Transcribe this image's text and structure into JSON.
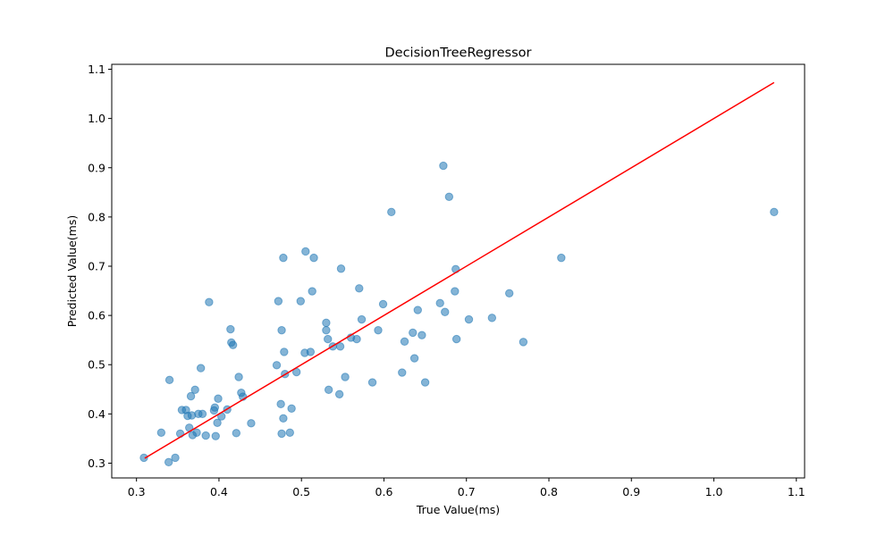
{
  "chart_data": {
    "type": "scatter",
    "title": "DecisionTreeRegressor",
    "xlabel": "True Value(ms)",
    "ylabel": "Predicted Value(ms)",
    "xlim": [
      0.27,
      1.11
    ],
    "ylim": [
      0.27,
      1.11
    ],
    "xticks": [
      "0.3",
      "0.4",
      "0.5",
      "0.6",
      "0.7",
      "0.8",
      "0.9",
      "1.0",
      "1.1"
    ],
    "yticks": [
      "0.3",
      "0.4",
      "0.5",
      "0.6",
      "0.7",
      "0.8",
      "0.9",
      "1.0",
      "1.1"
    ],
    "grid": false,
    "point_color": "#1f77b4",
    "point_alpha": 0.55,
    "line_color": "#ff0000",
    "reference_line": {
      "x": [
        0.31,
        1.073
      ],
      "y": [
        0.31,
        1.073
      ]
    },
    "points": [
      [
        0.309,
        0.311
      ],
      [
        0.33,
        0.362
      ],
      [
        0.339,
        0.302
      ],
      [
        0.34,
        0.469
      ],
      [
        0.347,
        0.311
      ],
      [
        0.353,
        0.36
      ],
      [
        0.355,
        0.408
      ],
      [
        0.36,
        0.408
      ],
      [
        0.362,
        0.396
      ],
      [
        0.364,
        0.372
      ],
      [
        0.366,
        0.436
      ],
      [
        0.367,
        0.397
      ],
      [
        0.368,
        0.357
      ],
      [
        0.371,
        0.449
      ],
      [
        0.373,
        0.362
      ],
      [
        0.375,
        0.4
      ],
      [
        0.378,
        0.493
      ],
      [
        0.38,
        0.4
      ],
      [
        0.384,
        0.356
      ],
      [
        0.388,
        0.627
      ],
      [
        0.394,
        0.407
      ],
      [
        0.395,
        0.413
      ],
      [
        0.396,
        0.355
      ],
      [
        0.398,
        0.382
      ],
      [
        0.399,
        0.431
      ],
      [
        0.403,
        0.395
      ],
      [
        0.41,
        0.409
      ],
      [
        0.414,
        0.572
      ],
      [
        0.415,
        0.545
      ],
      [
        0.417,
        0.54
      ],
      [
        0.421,
        0.361
      ],
      [
        0.424,
        0.475
      ],
      [
        0.427,
        0.443
      ],
      [
        0.429,
        0.435
      ],
      [
        0.439,
        0.381
      ],
      [
        0.47,
        0.499
      ],
      [
        0.472,
        0.629
      ],
      [
        0.475,
        0.42
      ],
      [
        0.476,
        0.57
      ],
      [
        0.476,
        0.36
      ],
      [
        0.478,
        0.717
      ],
      [
        0.478,
        0.391
      ],
      [
        0.479,
        0.526
      ],
      [
        0.48,
        0.481
      ],
      [
        0.486,
        0.362
      ],
      [
        0.488,
        0.411
      ],
      [
        0.494,
        0.485
      ],
      [
        0.499,
        0.629
      ],
      [
        0.504,
        0.524
      ],
      [
        0.505,
        0.73
      ],
      [
        0.511,
        0.526
      ],
      [
        0.513,
        0.649
      ],
      [
        0.515,
        0.717
      ],
      [
        0.53,
        0.585
      ],
      [
        0.53,
        0.57
      ],
      [
        0.532,
        0.552
      ],
      [
        0.533,
        0.449
      ],
      [
        0.538,
        0.537
      ],
      [
        0.546,
        0.44
      ],
      [
        0.547,
        0.537
      ],
      [
        0.548,
        0.695
      ],
      [
        0.553,
        0.475
      ],
      [
        0.56,
        0.555
      ],
      [
        0.567,
        0.552
      ],
      [
        0.57,
        0.655
      ],
      [
        0.573,
        0.592
      ],
      [
        0.586,
        0.464
      ],
      [
        0.593,
        0.57
      ],
      [
        0.599,
        0.623
      ],
      [
        0.609,
        0.81
      ],
      [
        0.622,
        0.484
      ],
      [
        0.625,
        0.547
      ],
      [
        0.635,
        0.565
      ],
      [
        0.637,
        0.513
      ],
      [
        0.641,
        0.611
      ],
      [
        0.646,
        0.56
      ],
      [
        0.65,
        0.464
      ],
      [
        0.668,
        0.625
      ],
      [
        0.672,
        0.904
      ],
      [
        0.674,
        0.607
      ],
      [
        0.679,
        0.841
      ],
      [
        0.686,
        0.649
      ],
      [
        0.687,
        0.694
      ],
      [
        0.688,
        0.552
      ],
      [
        0.703,
        0.592
      ],
      [
        0.731,
        0.595
      ],
      [
        0.752,
        0.645
      ],
      [
        0.769,
        0.546
      ],
      [
        0.815,
        0.717
      ],
      [
        1.073,
        0.81
      ]
    ]
  }
}
